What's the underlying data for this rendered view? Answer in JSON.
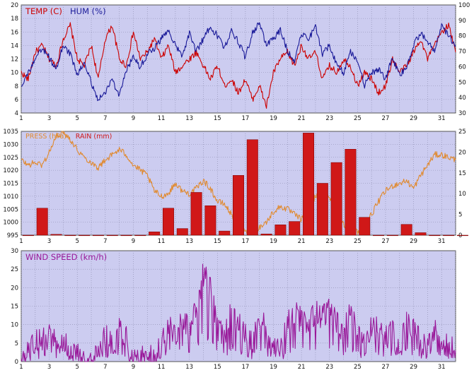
{
  "chart_data": [
    {
      "type": "line",
      "legend": [
        {
          "label": "TEMP (C)",
          "color": "#cc0000"
        },
        {
          "label": "HUM (%)",
          "color": "#1a1a99"
        }
      ],
      "x_ticks": [
        "1",
        "3",
        "5",
        "7",
        "9",
        "11",
        "13",
        "15",
        "17",
        "19",
        "21",
        "23",
        "25",
        "27",
        "29",
        "31"
      ],
      "xlim": [
        1,
        32
      ],
      "left_axis": {
        "ylim": [
          4,
          20
        ],
        "ticks": [
          "4",
          "6",
          "8",
          "10",
          "12",
          "14",
          "16",
          "18",
          "20"
        ]
      },
      "right_axis": {
        "ylim": [
          30,
          100
        ],
        "ticks": [
          "30",
          "40",
          "50",
          "60",
          "70",
          "80",
          "90",
          "100"
        ]
      },
      "series": [
        {
          "name": "TEMP (C)",
          "axis": "left",
          "color": "#cc0000",
          "x": [
            1,
            1.5,
            2,
            2.5,
            3,
            3.5,
            4,
            4.5,
            5,
            5.5,
            6,
            6.5,
            7,
            7.5,
            8,
            8.5,
            9,
            9.5,
            10,
            10.5,
            11,
            11.5,
            12,
            12.5,
            13,
            13.5,
            14,
            14.5,
            15,
            15.5,
            16,
            16.5,
            17,
            17.5,
            18,
            18.5,
            19,
            19.5,
            20,
            20.5,
            21,
            21.5,
            22,
            22.5,
            23,
            23.5,
            24,
            24.5,
            25,
            25.5,
            26,
            26.5,
            27,
            27.5,
            28,
            28.5,
            29,
            29.5,
            30,
            30.5,
            31,
            31.5,
            32
          ],
          "values": [
            10,
            9,
            13,
            14,
            12,
            11,
            15,
            17,
            12,
            11,
            14,
            9,
            15,
            17,
            12,
            11,
            16,
            12,
            13,
            15,
            12,
            14,
            10,
            11,
            12,
            13,
            11,
            9,
            11,
            8,
            9,
            7,
            9,
            6,
            8,
            5,
            10,
            12,
            13,
            11,
            14,
            12,
            13,
            9,
            11,
            10,
            12,
            11,
            8,
            10,
            9,
            7,
            8,
            12,
            10,
            11,
            13,
            15,
            12,
            14,
            16,
            17,
            13
          ]
        },
        {
          "name": "HUM (%)",
          "axis": "right",
          "color": "#1a1a99",
          "x": [
            1,
            1.5,
            2,
            2.5,
            3,
            3.5,
            4,
            4.5,
            5,
            5.5,
            6,
            6.5,
            7,
            7.5,
            8,
            8.5,
            9,
            9.5,
            10,
            10.5,
            11,
            11.5,
            12,
            12.5,
            13,
            13.5,
            14,
            14.5,
            15,
            15.5,
            16,
            16.5,
            17,
            17.5,
            18,
            18.5,
            19,
            19.5,
            20,
            20.5,
            21,
            21.5,
            22,
            22.5,
            23,
            23.5,
            24,
            24.5,
            25,
            25.5,
            26,
            26.5,
            27,
            27.5,
            28,
            28.5,
            29,
            29.5,
            30,
            30.5,
            31,
            31.5,
            32
          ],
          "values": [
            48,
            56,
            64,
            72,
            66,
            58,
            74,
            68,
            55,
            62,
            50,
            38,
            44,
            52,
            40,
            58,
            66,
            60,
            68,
            72,
            78,
            84,
            74,
            66,
            82,
            70,
            78,
            86,
            80,
            72,
            84,
            76,
            66,
            82,
            88,
            74,
            78,
            84,
            70,
            64,
            82,
            78,
            86,
            68,
            74,
            62,
            56,
            70,
            64,
            48,
            56,
            58,
            52,
            66,
            54,
            60,
            74,
            82,
            76,
            70,
            86,
            80,
            74
          ]
        }
      ]
    },
    {
      "type": "bar+line",
      "legend": [
        {
          "label": "PRESS (hPa)",
          "color": "#e08a30"
        },
        {
          "label": "RAIN (mm)",
          "color": "#d01818"
        }
      ],
      "x_ticks": [
        "1",
        "3",
        "5",
        "7",
        "9",
        "11",
        "13",
        "15",
        "17",
        "19",
        "21",
        "23",
        "25",
        "27",
        "29",
        "31"
      ],
      "xlim": [
        1,
        32
      ],
      "left_axis": {
        "ylim": [
          995,
          1035
        ],
        "ticks": [
          "995",
          "1000",
          "1005",
          "1010",
          "1015",
          "1020",
          "1025",
          "1030",
          "1035"
        ]
      },
      "right_axis": {
        "ylim": [
          0,
          25
        ],
        "ticks": [
          "0",
          "5",
          "10",
          "15",
          "20",
          "25"
        ]
      },
      "series": [
        {
          "name": "PRESS (hPa)",
          "axis": "left",
          "kind": "line",
          "color": "#e08a30",
          "x": [
            1,
            1.5,
            2,
            2.5,
            3,
            3.5,
            4,
            4.5,
            5,
            5.5,
            6,
            6.5,
            7,
            7.5,
            8,
            8.5,
            9,
            9.5,
            10,
            10.5,
            11,
            11.5,
            12,
            12.5,
            13,
            13.5,
            14,
            14.5,
            15,
            15.5,
            16,
            16.5,
            17,
            17.5,
            18,
            18.5,
            19,
            19.5,
            20,
            20.5,
            21,
            21.5,
            22,
            22.5,
            23,
            23.5,
            24,
            24.5,
            25,
            25.5,
            26,
            26.5,
            27,
            27.5,
            28,
            28.5,
            29,
            29.5,
            30,
            30.5,
            31,
            31.5,
            32
          ],
          "values": [
            1024,
            1022,
            1023,
            1022,
            1027,
            1033,
            1035,
            1032,
            1028,
            1025,
            1023,
            1021,
            1024,
            1026,
            1028,
            1026,
            1022,
            1020,
            1018,
            1012,
            1010,
            1011,
            1015,
            1012,
            1011,
            1013,
            1016,
            1013,
            1008,
            1007,
            1003,
            999,
            996,
            997,
            998,
            1000,
            1004,
            1006,
            1005,
            1003,
            1001,
            1005,
            1010,
            1013,
            1010,
            1004,
            999,
            998,
            996,
            999,
            1003,
            1008,
            1012,
            1014,
            1015,
            1016,
            1013,
            1018,
            1022,
            1026,
            1026,
            1025,
            1024
          ]
        },
        {
          "name": "RAIN (mm)",
          "axis": "right",
          "kind": "bar",
          "color": "#d01818",
          "x": [
            1,
            2,
            3,
            4,
            5,
            6,
            7,
            8,
            9,
            10,
            11,
            12,
            13,
            14,
            15,
            16,
            17,
            18,
            19,
            20,
            21,
            22,
            23,
            24,
            25,
            26,
            27,
            28,
            29,
            30,
            31,
            32
          ],
          "values": [
            0,
            6.5,
            0.2,
            0,
            0,
            0,
            0,
            0,
            0,
            0.8,
            6.5,
            1.6,
            10.3,
            7.1,
            1.0,
            14.4,
            23.0,
            0.3,
            2.5,
            3.3,
            24.6,
            12.5,
            17.5,
            20.7,
            4.3,
            0,
            0,
            2.6,
            0.6,
            0,
            0,
            0
          ]
        }
      ]
    },
    {
      "type": "line",
      "legend": [
        {
          "label": "WIND SPEED (km/h)",
          "color": "#991899"
        }
      ],
      "x_ticks": [
        "1",
        "3",
        "5",
        "7",
        "9",
        "11",
        "13",
        "15",
        "17",
        "19",
        "21",
        "23",
        "25",
        "27",
        "29",
        "31"
      ],
      "xlim": [
        1,
        32
      ],
      "left_axis": {
        "ylim": [
          0,
          30
        ],
        "ticks": [
          "0",
          "5",
          "10",
          "15",
          "20",
          "25",
          "30"
        ]
      },
      "series": [
        {
          "name": "WIND SPEED (km/h)",
          "axis": "left",
          "color": "#991899",
          "x": [
            1,
            1.5,
            2,
            2.5,
            3,
            3.5,
            4,
            4.5,
            5,
            5.5,
            6,
            6.5,
            7,
            7.5,
            8,
            8.5,
            9,
            9.5,
            10,
            10.5,
            11,
            11.5,
            12,
            12.5,
            13,
            13.5,
            14,
            14.5,
            15,
            15.5,
            16,
            16.5,
            17,
            17.5,
            18,
            18.5,
            19,
            19.5,
            20,
            20.5,
            21,
            21.5,
            22,
            22.5,
            23,
            23.5,
            24,
            24.5,
            25,
            25.5,
            26,
            26.5,
            27,
            27.5,
            28,
            28.5,
            29,
            29.5,
            30,
            30.5,
            31,
            31.5,
            32
          ],
          "values": [
            0,
            2,
            5,
            7,
            9,
            4,
            6,
            3,
            2,
            1,
            0,
            4,
            7,
            5,
            9,
            6,
            0,
            1,
            2,
            0,
            5,
            10,
            7,
            12,
            8,
            15,
            24,
            20,
            9,
            6,
            14,
            10,
            7,
            5,
            12,
            8,
            5,
            3,
            10,
            13,
            11,
            9,
            14,
            12,
            15,
            10,
            8,
            13,
            7,
            4,
            10,
            8,
            6,
            9,
            5,
            10,
            8,
            6,
            4,
            8,
            7,
            4,
            3
          ]
        }
      ]
    }
  ]
}
